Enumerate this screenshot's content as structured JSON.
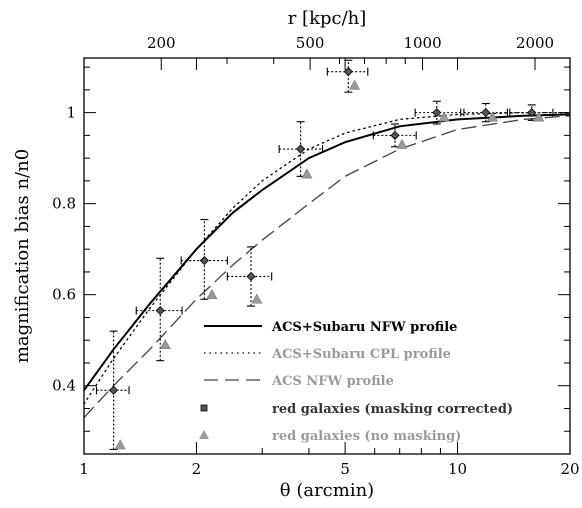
{
  "chart_data": {
    "type": "scatter",
    "xlabel": "θ (arcmin)",
    "ylabel": "magnification bias n/n0",
    "top_xlabel": "r [kpc/h]",
    "x_scale": "log",
    "xlim": [
      1,
      20
    ],
    "ylim": [
      0.25,
      1.12
    ],
    "x_ticks": [
      1,
      2,
      5,
      10,
      20
    ],
    "y_ticks": [
      0.4,
      0.6,
      0.8,
      1
    ],
    "top_x_ticks": [
      200,
      500,
      1000,
      2000
    ],
    "top_x_tick_theta": [
      1.61,
      4.03,
      8.06,
      16.12
    ],
    "legend_position": "bottom-right",
    "series": [
      {
        "name": "ACS+Subaru NFW profile",
        "kind": "line",
        "style": "solid",
        "color": "#000000",
        "x": [
          1,
          1.2,
          1.5,
          2,
          2.5,
          3,
          4,
          5,
          7,
          10,
          15,
          20
        ],
        "y": [
          0.39,
          0.48,
          0.58,
          0.7,
          0.78,
          0.83,
          0.9,
          0.935,
          0.97,
          0.985,
          0.993,
          0.996
        ]
      },
      {
        "name": "ACS+Subaru CPL profile",
        "kind": "line",
        "style": "dotted",
        "color": "#000000",
        "x": [
          1,
          1.2,
          1.5,
          2,
          2.5,
          3,
          4,
          5,
          7,
          10,
          15,
          20
        ],
        "y": [
          0.36,
          0.46,
          0.57,
          0.7,
          0.79,
          0.85,
          0.92,
          0.955,
          0.985,
          0.996,
          1.0,
          1.0
        ]
      },
      {
        "name": "ACS NFW profile",
        "kind": "line",
        "style": "dashed",
        "color": "#444444",
        "x": [
          1,
          1.2,
          1.5,
          2,
          2.5,
          3,
          4,
          5,
          7,
          10,
          15,
          20
        ],
        "y": [
          0.33,
          0.4,
          0.48,
          0.59,
          0.665,
          0.72,
          0.8,
          0.86,
          0.92,
          0.963,
          0.985,
          0.993
        ]
      },
      {
        "name": "red galaxies (masking corrected)",
        "kind": "points",
        "marker": "diamond",
        "color": "#000000",
        "x": [
          1.2,
          1.6,
          2.1,
          2.8,
          3.8,
          5.1,
          6.8,
          8.8,
          11.9,
          15.8
        ],
        "y": [
          0.39,
          0.565,
          0.675,
          0.64,
          0.92,
          1.09,
          0.95,
          1.0,
          1.0,
          1.0
        ],
        "xerr_low": [
          1.08,
          1.38,
          1.82,
          2.42,
          3.33,
          4.48,
          5.95,
          7.7,
          10.4,
          13.8
        ],
        "xerr_high": [
          1.32,
          1.83,
          2.42,
          3.18,
          4.35,
          5.75,
          7.75,
          10.2,
          13.6,
          18.0
        ],
        "yerr_low": [
          0.26,
          0.455,
          0.59,
          0.575,
          0.86,
          1.045,
          0.925,
          0.975,
          0.98,
          0.983
        ],
        "yerr_high": [
          0.52,
          0.68,
          0.765,
          0.705,
          0.98,
          1.115,
          0.975,
          1.025,
          1.02,
          1.017
        ]
      },
      {
        "name": "red galaxies (no masking)",
        "kind": "points",
        "marker": "triangle",
        "color": "#999999",
        "x": [
          1.25,
          1.65,
          2.2,
          2.9,
          3.95,
          5.3,
          7.1,
          9.2,
          12.4,
          16.5
        ],
        "y": [
          0.27,
          0.49,
          0.6,
          0.59,
          0.865,
          1.06,
          0.93,
          0.99,
          0.99,
          0.99
        ]
      }
    ]
  }
}
